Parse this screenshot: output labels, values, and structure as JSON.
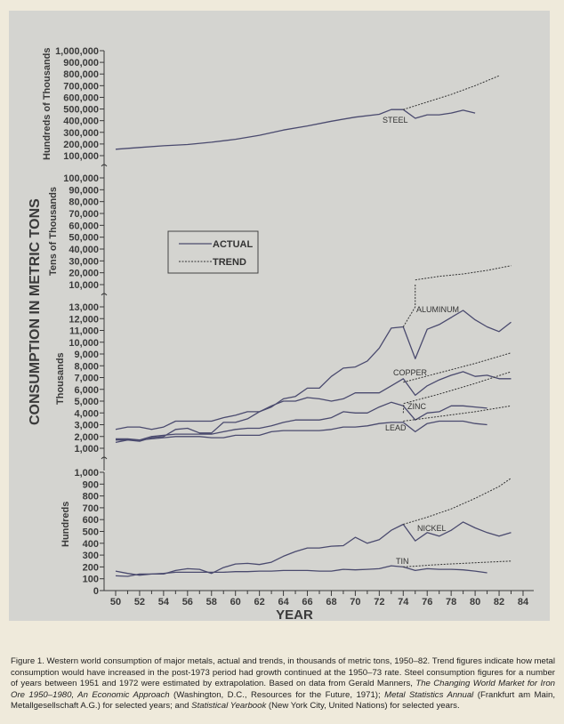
{
  "chart_data": {
    "type": "line",
    "title": "",
    "xlabel": "YEAR",
    "ylabel": "CONSUMPTION IN METRIC TONS",
    "x_ticks": [
      "50",
      "52",
      "54",
      "56",
      "58",
      "60",
      "62",
      "64",
      "66",
      "68",
      "70",
      "72",
      "74",
      "76",
      "78",
      "80",
      "82",
      "84"
    ],
    "xlim": [
      1950,
      1984
    ],
    "legend": {
      "position": "upper-left (tens panel)",
      "entries": [
        {
          "label": "ACTUAL",
          "style": "solid"
        },
        {
          "label": "TREND",
          "style": "dashed"
        }
      ]
    },
    "panels": [
      {
        "id": "steel",
        "unit_label": "Hundreds of Thousands",
        "ticks": [
          "1,000,000",
          "900,000",
          "800,000",
          "700,000",
          "600,000",
          "500,000",
          "400,000",
          "300,000",
          "200,000",
          "100,000"
        ],
        "ylim": [
          100000,
          1000000
        ],
        "series": [
          {
            "name": "STEEL",
            "kind": "actual",
            "x": [
              1950,
              1952,
              1954,
              1956,
              1958,
              1960,
              1962,
              1964,
              1966,
              1968,
              1970,
              1972,
              1973,
              1974,
              1975,
              1976,
              1977,
              1978,
              1979,
              1980
            ],
            "values": [
              155000,
              170000,
              185000,
              195000,
              215000,
              240000,
              275000,
              320000,
              355000,
              395000,
              430000,
              455000,
              495000,
              495000,
              420000,
              450000,
              450000,
              465000,
              490000,
              465000
            ]
          },
          {
            "name": "STEEL",
            "kind": "trend",
            "x": [
              1974,
              1976,
              1978,
              1980,
              1982
            ],
            "values": [
              495000,
              560000,
              625000,
              700000,
              785000
            ]
          }
        ]
      },
      {
        "id": "aluminum-upper",
        "unit_label": "Tens of Thousands",
        "ticks": [
          "100,000",
          "90,000",
          "80,000",
          "70,000",
          "60,000",
          "50,000",
          "40,000",
          "30,000",
          "20,000",
          "10,000"
        ],
        "ylim": [
          10000,
          100000
        ],
        "series": [
          {
            "name": "ALUMINUM",
            "kind": "trend",
            "x": [
              1975,
              1977,
              1979,
              1981,
              1983
            ],
            "values": [
              14000,
              17000,
              19000,
              22000,
              26000
            ]
          }
        ]
      },
      {
        "id": "thousands",
        "unit_label": "Thousands",
        "ticks": [
          "13,000",
          "12,000",
          "11,000",
          "10,000",
          "9,000",
          "8,000",
          "7,000",
          "6,000",
          "5,000",
          "4,000",
          "3,000",
          "2,000",
          "1,000"
        ],
        "ylim": [
          1000,
          13000
        ],
        "series": [
          {
            "name": "ALUMINUM",
            "kind": "actual",
            "x": [
              1950,
              1951,
              1952,
              1953,
              1954,
              1955,
              1956,
              1957,
              1958,
              1959,
              1960,
              1961,
              1962,
              1963,
              1964,
              1965,
              1966,
              1967,
              1968,
              1969,
              1970,
              1971,
              1972,
              1973,
              1974,
              1975,
              1976,
              1977,
              1978,
              1979,
              1980,
              1981,
              1982,
              1983
            ],
            "values": [
              1500,
              1700,
              1600,
              1900,
              2000,
              2600,
              2700,
              2300,
              2300,
              3200,
              3200,
              3500,
              4100,
              4500,
              5200,
              5400,
              6100,
              6100,
              7100,
              7800,
              7900,
              8400,
              9500,
              11200,
              11300,
              8600,
              11100,
              11500,
              12100,
              12700,
              11900,
              11300,
              10900,
              11700
            ]
          },
          {
            "name": "ALUMINUM",
            "kind": "trend",
            "x": [
              1974,
              1975
            ],
            "values": [
              11300,
              13000
            ]
          },
          {
            "name": "COPPER",
            "kind": "actual",
            "x": [
              1950,
              1951,
              1952,
              1953,
              1954,
              1955,
              1956,
              1957,
              1958,
              1959,
              1960,
              1961,
              1962,
              1963,
              1964,
              1965,
              1966,
              1967,
              1968,
              1969,
              1970,
              1971,
              1972,
              1973,
              1974,
              1975,
              1976,
              1977,
              1978,
              1979,
              1980,
              1981,
              1982,
              1983
            ],
            "values": [
              2600,
              2800,
              2800,
              2600,
              2800,
              3300,
              3300,
              3300,
              3300,
              3600,
              3800,
              4100,
              4100,
              4600,
              5000,
              5000,
              5300,
              5200,
              5000,
              5200,
              5700,
              5700,
              5700,
              6300,
              6900,
              5500,
              6300,
              6800,
              7200,
              7500,
              7100,
              7200,
              6900,
              6900
            ]
          },
          {
            "name": "COPPER",
            "kind": "trend",
            "x": [
              1974,
              1977,
              1980,
              1983
            ],
            "values": [
              6600,
              7400,
              8200,
              9100
            ]
          },
          {
            "name": "ZINC",
            "kind": "actual",
            "x": [
              1950,
              1951,
              1952,
              1953,
              1954,
              1955,
              1956,
              1957,
              1958,
              1959,
              1960,
              1961,
              1962,
              1963,
              1964,
              1965,
              1966,
              1967,
              1968,
              1969,
              1970,
              1971,
              1972,
              1973,
              1974,
              1975,
              1976,
              1977,
              1978,
              1979,
              1980,
              1981
            ],
            "values": [
              1800,
              1800,
              1700,
              2000,
              2100,
              2200,
              2200,
              2200,
              2200,
              2400,
              2600,
              2700,
              2700,
              2900,
              3200,
              3400,
              3400,
              3400,
              3600,
              4100,
              4000,
              4000,
              4500,
              4900,
              4600,
              3400,
              4000,
              4100,
              4600,
              4600,
              4500,
              4400
            ]
          },
          {
            "name": "ZINC",
            "kind": "trend",
            "x": [
              1974,
              1974.05,
              1977,
              1980,
              1983
            ],
            "values": [
              4000,
              4800,
              5600,
              6500,
              7500
            ]
          },
          {
            "name": "LEAD",
            "kind": "actual",
            "x": [
              1950,
              1951,
              1952,
              1953,
              1954,
              1955,
              1956,
              1957,
              1958,
              1959,
              1960,
              1961,
              1962,
              1963,
              1964,
              1965,
              1966,
              1967,
              1968,
              1969,
              1970,
              1971,
              1972,
              1973,
              1974,
              1975,
              1976,
              1977,
              1978,
              1979,
              1980,
              1981
            ],
            "values": [
              1700,
              1700,
              1700,
              1800,
              1900,
              2000,
              2000,
              2000,
              1900,
              1900,
              2100,
              2100,
              2100,
              2400,
              2500,
              2500,
              2500,
              2500,
              2600,
              2800,
              2800,
              2900,
              3100,
              3200,
              3200,
              2400,
              3100,
              3300,
              3300,
              3300,
              3100,
              3000
            ]
          },
          {
            "name": "LEAD",
            "kind": "trend",
            "x": [
              1974,
              1977,
              1980,
              1983
            ],
            "values": [
              3300,
              3700,
              4100,
              4600
            ]
          }
        ]
      },
      {
        "id": "hundreds",
        "unit_label": "Hundreds",
        "ticks": [
          "1,000",
          "900",
          "800",
          "700",
          "600",
          "500",
          "400",
          "300",
          "200",
          "100",
          "0"
        ],
        "ylim": [
          0,
          1000
        ],
        "series": [
          {
            "name": "NICKEL",
            "kind": "actual",
            "x": [
              1950,
              1951,
              1952,
              1953,
              1954,
              1955,
              1956,
              1957,
              1958,
              1959,
              1960,
              1961,
              1962,
              1963,
              1964,
              1965,
              1966,
              1967,
              1968,
              1969,
              1970,
              1971,
              1972,
              1973,
              1974,
              1975,
              1976,
              1977,
              1978,
              1979,
              1980,
              1981,
              1982,
              1983
            ],
            "values": [
              125,
              120,
              140,
              140,
              140,
              170,
              185,
              180,
              145,
              195,
              225,
              230,
              220,
              240,
              290,
              330,
              360,
              360,
              375,
              380,
              450,
              400,
              430,
              510,
              560,
              420,
              490,
              460,
              510,
              580,
              530,
              490,
              460,
              490
            ]
          },
          {
            "name": "NICKEL",
            "kind": "trend",
            "x": [
              1974,
              1976,
              1978,
              1980,
              1982,
              1983
            ],
            "values": [
              560,
              620,
              690,
              780,
              880,
              950
            ]
          },
          {
            "name": "TIN",
            "kind": "actual",
            "x": [
              1950,
              1951,
              1952,
              1953,
              1954,
              1955,
              1956,
              1957,
              1958,
              1959,
              1960,
              1961,
              1962,
              1963,
              1964,
              1965,
              1966,
              1967,
              1968,
              1969,
              1970,
              1971,
              1972,
              1973,
              1974,
              1975,
              1976,
              1977,
              1978,
              1979,
              1980,
              1981
            ],
            "values": [
              165,
              145,
              130,
              140,
              145,
              155,
              155,
              155,
              155,
              155,
              160,
              160,
              165,
              165,
              170,
              170,
              170,
              165,
              165,
              180,
              175,
              180,
              185,
              210,
              200,
              170,
              185,
              180,
              180,
              175,
              165,
              150
            ]
          },
          {
            "name": "TIN",
            "kind": "trend",
            "x": [
              1974,
              1977,
              1980,
              1983
            ],
            "values": [
              200,
              220,
              235,
              250
            ]
          }
        ]
      }
    ]
  },
  "labels": {
    "y_title": "CONSUMPTION IN METRIC TONS",
    "x_title": "YEAR",
    "steel": "STEEL",
    "aluminum": "ALUMINUM",
    "copper": "COPPER",
    "zinc": "ZINC",
    "lead": "LEAD",
    "nickel": "NICKEL",
    "tin": "TIN",
    "legend_actual": "ACTUAL",
    "legend_trend": "TREND"
  },
  "caption": {
    "part1": "Figure 1. Western world consumption of major metals, actual and trends, in thousands of metric tons, 1950–82. Trend figures indicate how metal consumption would have increased in the post-1973 period had growth continued at the 1950–73 rate. Steel consumption figures for a number of years between 1951 and 1972 were estimated by extrapolation. Based on data from Gerald Manners, ",
    "title1": "The Changing World Market for Iron Ore 1950–1980, An Economic Approach",
    "part2": " (Washington, D.C., Resources for the Future, 1971); ",
    "title2": "Metal Statistics Annual",
    "part3": " (Frankfurt am Main, Metallgesellschaft A.G.) for selected years; and ",
    "title3": "Statistical Yearbook",
    "part4": " (New York City, United Nations) for selected years."
  },
  "colors": {
    "line": "#4a4a6e",
    "panel_bg": "#d4d4d0",
    "page_bg": "#efeadb",
    "text": "#333333"
  }
}
